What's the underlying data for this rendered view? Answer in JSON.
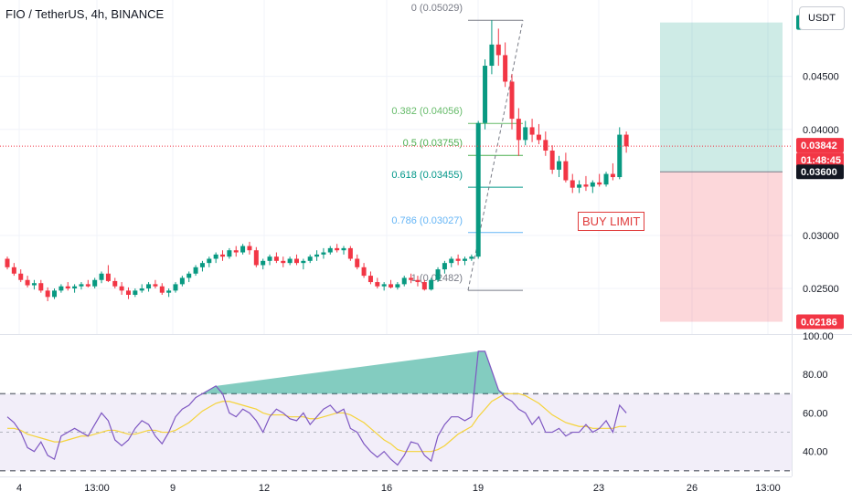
{
  "header": {
    "title": "FIO / TetherUS, 4h, BINANCE"
  },
  "toolbar": {
    "currency": "USDT"
  },
  "annotation": {
    "buy_limit": "BUY LIMIT"
  },
  "colors": {
    "up": "#089981",
    "down": "#f23645",
    "rsi_line": "#7e57c2",
    "rsi_ma": "#f5d33a",
    "fib_green": "#66bb6a",
    "fib_teal": "#009688",
    "fib_grey": "#787b86"
  },
  "chart_data": [
    {
      "type": "candlestick",
      "symbol": "FIO / TetherUS",
      "interval": "4h",
      "exchange": "BINANCE",
      "x_tick_labels": [
        "4",
        "13:00",
        "9",
        "12",
        "16",
        "19",
        "23",
        "26",
        "13:00"
      ],
      "y_tick_labels": [
        "0.04500",
        "0.04000",
        "0.03000",
        "0.02500"
      ],
      "ylim": [
        0.0207,
        0.0522
      ],
      "candles_ohlc": [
        [
          0.0278,
          0.028,
          0.0268,
          0.027
        ],
        [
          0.027,
          0.0274,
          0.0262,
          0.0264
        ],
        [
          0.0264,
          0.0268,
          0.0256,
          0.0258
        ],
        [
          0.0258,
          0.0262,
          0.0251,
          0.0253
        ],
        [
          0.0253,
          0.0258,
          0.0249,
          0.0255
        ],
        [
          0.0255,
          0.0258,
          0.0246,
          0.0248
        ],
        [
          0.0248,
          0.0251,
          0.0238,
          0.0242
        ],
        [
          0.0242,
          0.025,
          0.024,
          0.0248
        ],
        [
          0.0248,
          0.0254,
          0.0246,
          0.0252
        ],
        [
          0.0252,
          0.0256,
          0.0248,
          0.025
        ],
        [
          0.025,
          0.0254,
          0.0246,
          0.0252
        ],
        [
          0.0252,
          0.0256,
          0.0249,
          0.0254
        ],
        [
          0.0254,
          0.0258,
          0.0251,
          0.0252
        ],
        [
          0.0252,
          0.026,
          0.025,
          0.0258
        ],
        [
          0.0258,
          0.0266,
          0.0255,
          0.0264
        ],
        [
          0.0264,
          0.0272,
          0.0256,
          0.0257
        ],
        [
          0.0257,
          0.026,
          0.025,
          0.0252
        ],
        [
          0.0252,
          0.0256,
          0.0244,
          0.0248
        ],
        [
          0.0248,
          0.0251,
          0.024,
          0.0244
        ],
        [
          0.0244,
          0.025,
          0.0242,
          0.0248
        ],
        [
          0.0248,
          0.0254,
          0.0246,
          0.025
        ],
        [
          0.025,
          0.0256,
          0.0247,
          0.0254
        ],
        [
          0.0254,
          0.0258,
          0.025,
          0.0252
        ],
        [
          0.0252,
          0.0255,
          0.0244,
          0.0246
        ],
        [
          0.0246,
          0.025,
          0.0242,
          0.0248
        ],
        [
          0.0248,
          0.0256,
          0.0246,
          0.0254
        ],
        [
          0.0254,
          0.0262,
          0.0252,
          0.026
        ],
        [
          0.026,
          0.0266,
          0.0256,
          0.0264
        ],
        [
          0.0264,
          0.0272,
          0.0262,
          0.027
        ],
        [
          0.027,
          0.0276,
          0.0266,
          0.0274
        ],
        [
          0.0274,
          0.028,
          0.027,
          0.0278
        ],
        [
          0.0278,
          0.0284,
          0.0274,
          0.0282
        ],
        [
          0.0282,
          0.0286,
          0.0276,
          0.028
        ],
        [
          0.028,
          0.0288,
          0.0278,
          0.0286
        ],
        [
          0.0286,
          0.029,
          0.028,
          0.0284
        ],
        [
          0.0284,
          0.0292,
          0.0282,
          0.029
        ],
        [
          0.029,
          0.0294,
          0.0282,
          0.0286
        ],
        [
          0.0286,
          0.0289,
          0.027,
          0.0272
        ],
        [
          0.0272,
          0.0278,
          0.0268,
          0.0276
        ],
        [
          0.0276,
          0.0282,
          0.0272,
          0.028
        ],
        [
          0.028,
          0.0284,
          0.0274,
          0.0276
        ],
        [
          0.0276,
          0.028,
          0.027,
          0.0274
        ],
        [
          0.0274,
          0.028,
          0.0272,
          0.0278
        ],
        [
          0.0278,
          0.0282,
          0.0272,
          0.0274
        ],
        [
          0.0274,
          0.0278,
          0.0268,
          0.0276
        ],
        [
          0.0276,
          0.0282,
          0.0274,
          0.028
        ],
        [
          0.028,
          0.0286,
          0.0276,
          0.0282
        ],
        [
          0.0282,
          0.0288,
          0.0278,
          0.0284
        ],
        [
          0.0284,
          0.029,
          0.0282,
          0.0288
        ],
        [
          0.0288,
          0.0292,
          0.0284,
          0.0286
        ],
        [
          0.0286,
          0.029,
          0.0282,
          0.0288
        ],
        [
          0.0288,
          0.029,
          0.0276,
          0.0278
        ],
        [
          0.0278,
          0.0282,
          0.0268,
          0.027
        ],
        [
          0.027,
          0.0274,
          0.026,
          0.0262
        ],
        [
          0.0262,
          0.0266,
          0.0254,
          0.0256
        ],
        [
          0.0256,
          0.026,
          0.025,
          0.0252
        ],
        [
          0.0252,
          0.0256,
          0.0248,
          0.0254
        ],
        [
          0.0254,
          0.0258,
          0.025,
          0.0251
        ],
        [
          0.0251,
          0.0256,
          0.0249,
          0.0254
        ],
        [
          0.0254,
          0.0262,
          0.0252,
          0.026
        ],
        [
          0.026,
          0.0264,
          0.0255,
          0.0258
        ],
        [
          0.0258,
          0.0262,
          0.0252,
          0.0256
        ],
        [
          0.0256,
          0.0258,
          0.0248,
          0.0249
        ],
        [
          0.0249,
          0.026,
          0.0248,
          0.0258
        ],
        [
          0.0258,
          0.027,
          0.0256,
          0.0268
        ],
        [
          0.0268,
          0.0276,
          0.0264,
          0.0274
        ],
        [
          0.0274,
          0.028,
          0.027,
          0.0278
        ],
        [
          0.0278,
          0.0282,
          0.0272,
          0.0276
        ],
        [
          0.0276,
          0.028,
          0.0272,
          0.0278
        ],
        [
          0.0278,
          0.0282,
          0.0276,
          0.028
        ],
        [
          0.028,
          0.0408,
          0.0278,
          0.0406
        ],
        [
          0.0406,
          0.0466,
          0.04,
          0.046
        ],
        [
          0.046,
          0.0503,
          0.0452,
          0.048
        ],
        [
          0.048,
          0.0495,
          0.046,
          0.047
        ],
        [
          0.047,
          0.0482,
          0.044,
          0.0445
        ],
        [
          0.0445,
          0.0452,
          0.04,
          0.041
        ],
        [
          0.041,
          0.042,
          0.0375,
          0.039
        ],
        [
          0.039,
          0.0408,
          0.0385,
          0.0402
        ],
        [
          0.0402,
          0.041,
          0.0388,
          0.0395
        ],
        [
          0.0395,
          0.0405,
          0.0386,
          0.039
        ],
        [
          0.039,
          0.0398,
          0.0375,
          0.038
        ],
        [
          0.038,
          0.0385,
          0.0358,
          0.0362
        ],
        [
          0.0362,
          0.0375,
          0.0355,
          0.037
        ],
        [
          0.037,
          0.0378,
          0.035,
          0.0352
        ],
        [
          0.0352,
          0.0358,
          0.034,
          0.0345
        ],
        [
          0.0345,
          0.0352,
          0.034,
          0.0348
        ],
        [
          0.0348,
          0.0356,
          0.0342,
          0.0346
        ],
        [
          0.0346,
          0.0352,
          0.034,
          0.035
        ],
        [
          0.035,
          0.0358,
          0.0346,
          0.0348
        ],
        [
          0.0348,
          0.036,
          0.0346,
          0.0358
        ],
        [
          0.0358,
          0.0368,
          0.0352,
          0.0355
        ],
        [
          0.0355,
          0.0402,
          0.0353,
          0.0395
        ],
        [
          0.0395,
          0.0398,
          0.0378,
          0.0384
        ]
      ],
      "fibonacci_levels": [
        {
          "label": "0 (0.05029)",
          "value": 0.05029,
          "color": "#787b86"
        },
        {
          "label": "0.382 (0.04056)",
          "value": 0.04056,
          "color": "#66bb6a"
        },
        {
          "label": "0.5 (0.03755)",
          "value": 0.03755,
          "color": "#4caf50"
        },
        {
          "label": "0.618 (0.03455)",
          "value": 0.03455,
          "color": "#009688"
        },
        {
          "label": "0.786 (0.03027)",
          "value": 0.03027,
          "color": "#64b5f6"
        },
        {
          "label": "1 (0.02482)",
          "value": 0.02482,
          "color": "#787b86"
        }
      ],
      "position": {
        "entry": 0.036,
        "target": 0.05008,
        "stop": 0.02186
      },
      "price_labels": [
        {
          "label": "0.05008",
          "value": 0.05008,
          "color": "#089981"
        },
        {
          "label": "0.03842",
          "value": 0.03842,
          "color": "#f23645"
        },
        {
          "label": "01:48:45",
          "value": 0.03842,
          "color": "#f23645"
        },
        {
          "label": "0.03600",
          "value": 0.036,
          "color": "#131722"
        },
        {
          "label": "0.02186",
          "value": 0.02186,
          "color": "#f23645"
        }
      ],
      "last_price": 0.03842,
      "countdown": "01:48:45"
    },
    {
      "type": "line",
      "indicator": "RSI",
      "y_tick_labels": [
        "100.00",
        "80.00",
        "60.00",
        "40.00"
      ],
      "ylim": [
        28,
        100
      ],
      "bands": {
        "upper": 70,
        "middle": 50,
        "lower": 30
      },
      "series": [
        {
          "values": [
            58,
            55,
            50,
            42,
            40,
            45,
            38,
            36,
            48,
            50,
            52,
            50,
            48,
            54,
            60,
            56,
            46,
            43,
            46,
            52,
            56,
            54,
            48,
            44,
            50,
            58,
            62,
            64,
            68,
            70,
            72,
            74,
            70,
            60,
            58,
            62,
            60,
            56,
            50,
            58,
            62,
            60,
            57,
            56,
            60,
            54,
            58,
            62,
            64,
            60,
            62,
            52,
            50,
            44,
            40,
            37,
            40,
            36,
            33,
            38,
            45,
            44,
            38,
            35,
            48,
            54,
            58,
            58,
            56,
            58,
            92,
            92,
            82,
            72,
            68,
            66,
            62,
            60,
            54,
            58,
            50,
            50,
            52,
            48,
            50,
            50,
            54,
            50,
            52,
            56,
            50,
            64,
            60
          ]
        },
        {
          "values": [
            52,
            52,
            51,
            49,
            48,
            47,
            46,
            45,
            45,
            46,
            47,
            48,
            48,
            49,
            50,
            51,
            51,
            50,
            49,
            49,
            50,
            51,
            51,
            50,
            50,
            51,
            53,
            55,
            58,
            61,
            63,
            65,
            66,
            66,
            65,
            64,
            63,
            62,
            60,
            59,
            59,
            59,
            58,
            58,
            58,
            57,
            57,
            58,
            59,
            60,
            60,
            59,
            57,
            55,
            52,
            49,
            46,
            44,
            41,
            40,
            40,
            40,
            40,
            40,
            41,
            43,
            46,
            49,
            51,
            53,
            58,
            62,
            66,
            68,
            70,
            70,
            70,
            69,
            67,
            65,
            62,
            59,
            57,
            55,
            54,
            53,
            53,
            52,
            52,
            52,
            52,
            53,
            53
          ]
        }
      ]
    }
  ]
}
